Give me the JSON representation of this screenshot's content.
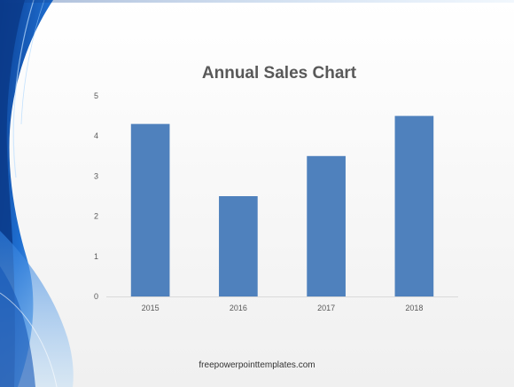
{
  "slide": {
    "footer_url": "freepowerpointtemplates.com",
    "colors": {
      "background": "#f4f4f4",
      "decor_blue_dark": "#0d47a1",
      "decor_blue_light": "#7fb8ec",
      "bar": "#4f81bd",
      "axis_text": "#595959",
      "axis_line": "#d9d9d9"
    }
  },
  "chart_data": {
    "type": "bar",
    "title": "Annual Sales Chart",
    "categories": [
      "2015",
      "2016",
      "2017",
      "2018"
    ],
    "values": [
      4.3,
      2.5,
      3.5,
      4.5
    ],
    "xlabel": "",
    "ylabel": "",
    "ylim": [
      0,
      5
    ],
    "yticks": [
      "0",
      "1",
      "2",
      "3",
      "4",
      "5"
    ],
    "grid": false,
    "legend": "none"
  }
}
